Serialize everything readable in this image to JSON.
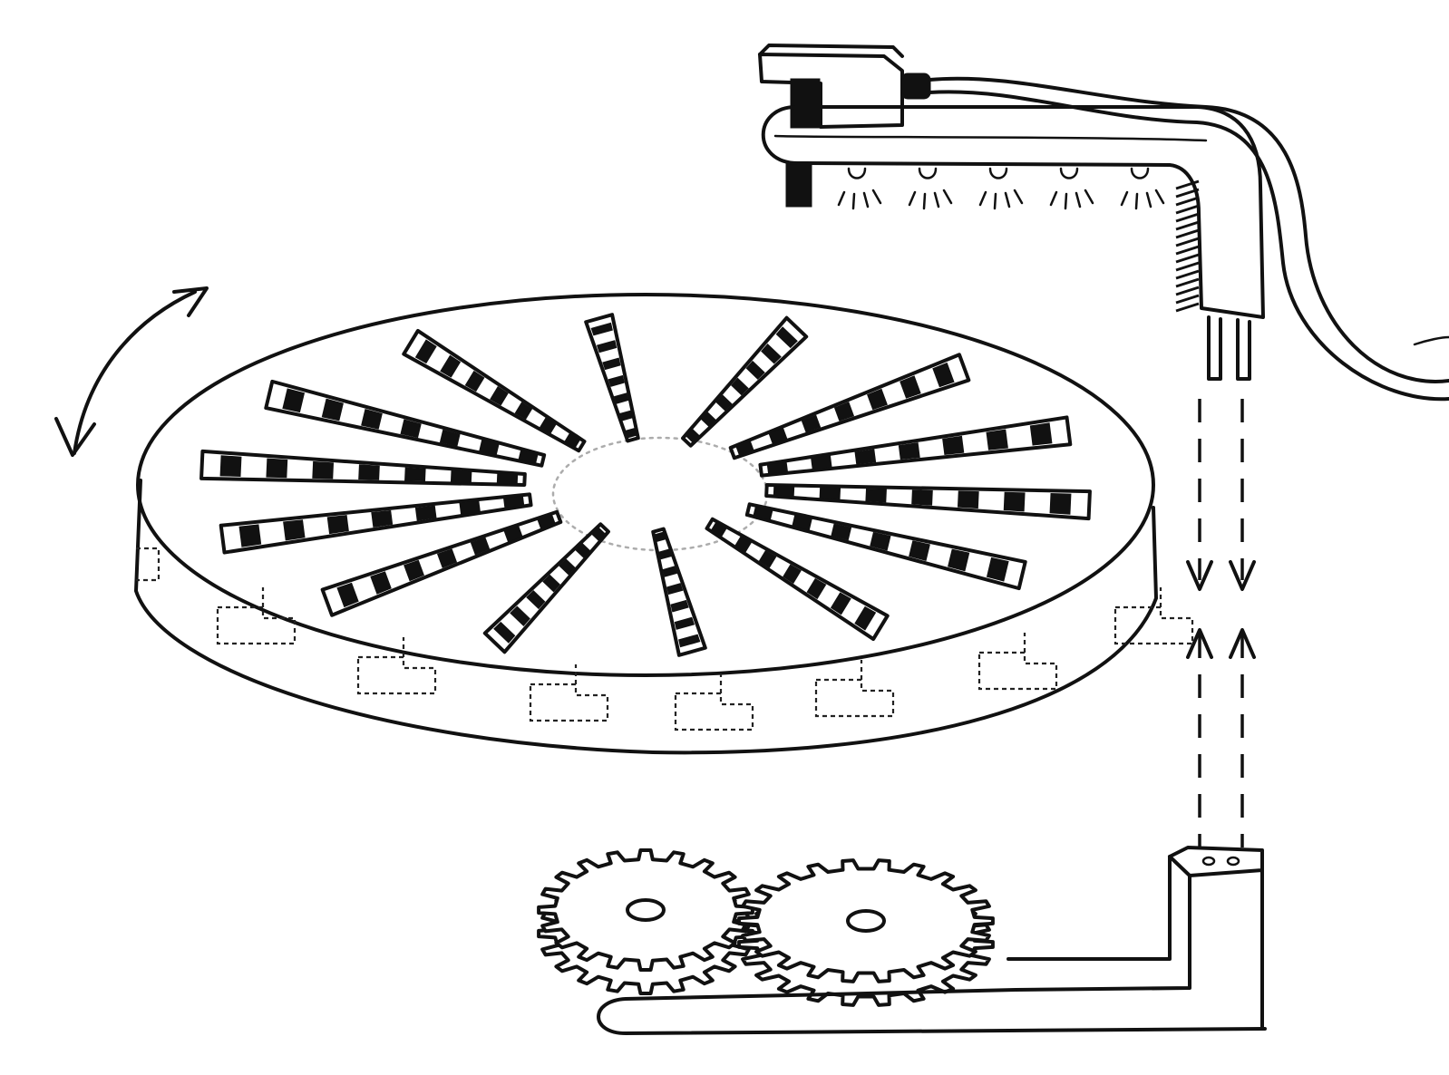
{
  "figure": {
    "type": "hand-drawn technical sketch",
    "colors": {
      "ink": "#111111",
      "paper": "#ffffff"
    },
    "components": [
      "rotating-platter",
      "rotation-arrow-icon",
      "spray-head",
      "spray-nozzle-icon",
      "cable",
      "gear-left",
      "gear-right",
      "drive-base-bracket",
      "vertical-connector-block",
      "dashed-alignment-arrows"
    ],
    "platter_slot_count": 14,
    "spray_nozzle_count": 5,
    "gear_count": 2
  }
}
